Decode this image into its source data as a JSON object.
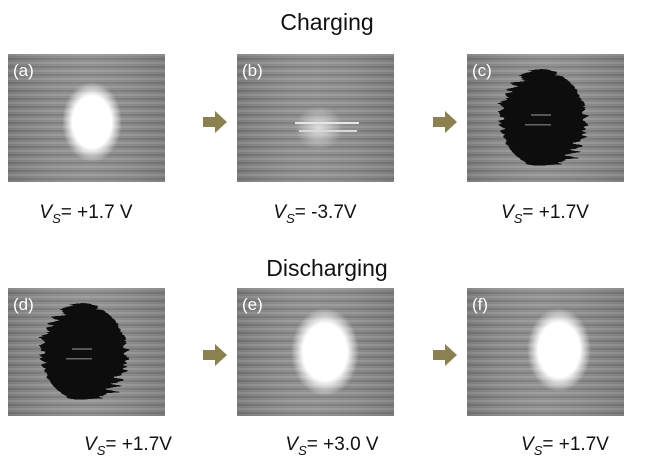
{
  "rows": [
    {
      "title": "Charging",
      "panels": [
        {
          "label": "(a)",
          "caption": {
            "var": "V",
            "sub": "S",
            "text": "= +1.7 V"
          }
        },
        {
          "label": "(b)",
          "caption": {
            "var": "V",
            "sub": "S",
            "text": "= -3.7V"
          }
        },
        {
          "label": "(c)",
          "caption": {
            "var": "V",
            "sub": "S",
            "text": "= +1.7V"
          }
        }
      ]
    },
    {
      "title": "Discharging",
      "panels": [
        {
          "label": "(d)",
          "caption": {
            "var": "V",
            "sub": "S",
            "text": "= +1.7V"
          }
        },
        {
          "label": "(e)",
          "caption": {
            "var": "V",
            "sub": "S",
            "text": "= +3.0 V"
          }
        },
        {
          "label": "(f)",
          "caption": {
            "var": "V",
            "sub": "S",
            "text": "= +1.7V"
          }
        }
      ]
    }
  ]
}
